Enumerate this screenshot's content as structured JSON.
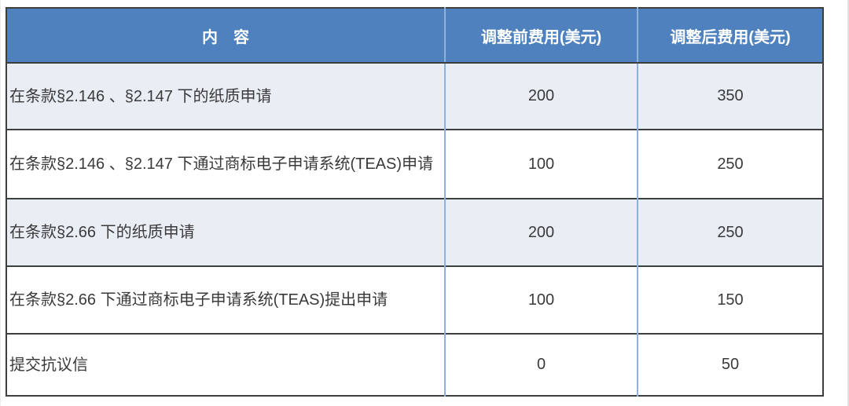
{
  "table": {
    "headers": [
      "内　容",
      "调整前费用(美元)",
      "调整后费用(美元)"
    ],
    "rows": [
      {
        "content": "在条款§2.146 、§2.147 下的纸质申请",
        "fee_before": "200",
        "fee_after": "350"
      },
      {
        "content": "在条款§2.146 、§2.147 下通过商标电子申请系统(TEAS)申请",
        "fee_before": "100",
        "fee_after": "250"
      },
      {
        "content": "在条款§2.66 下的纸质申请",
        "fee_before": "200",
        "fee_after": "250"
      },
      {
        "content": "在条款§2.66 下通过商标电子申请系统(TEAS)提出申请",
        "fee_before": "100",
        "fee_after": "150"
      },
      {
        "content": "提交抗议信",
        "fee_before": "0",
        "fee_after": "50"
      }
    ],
    "colors": {
      "header_bg": "#4e81bd",
      "header_text": "#ffffff",
      "shaded_row_bg": "#e9edf4",
      "vertical_divider": "#8db3dc",
      "dark_border": "#3e3e3e",
      "body_text": "#3a3a3a"
    }
  }
}
